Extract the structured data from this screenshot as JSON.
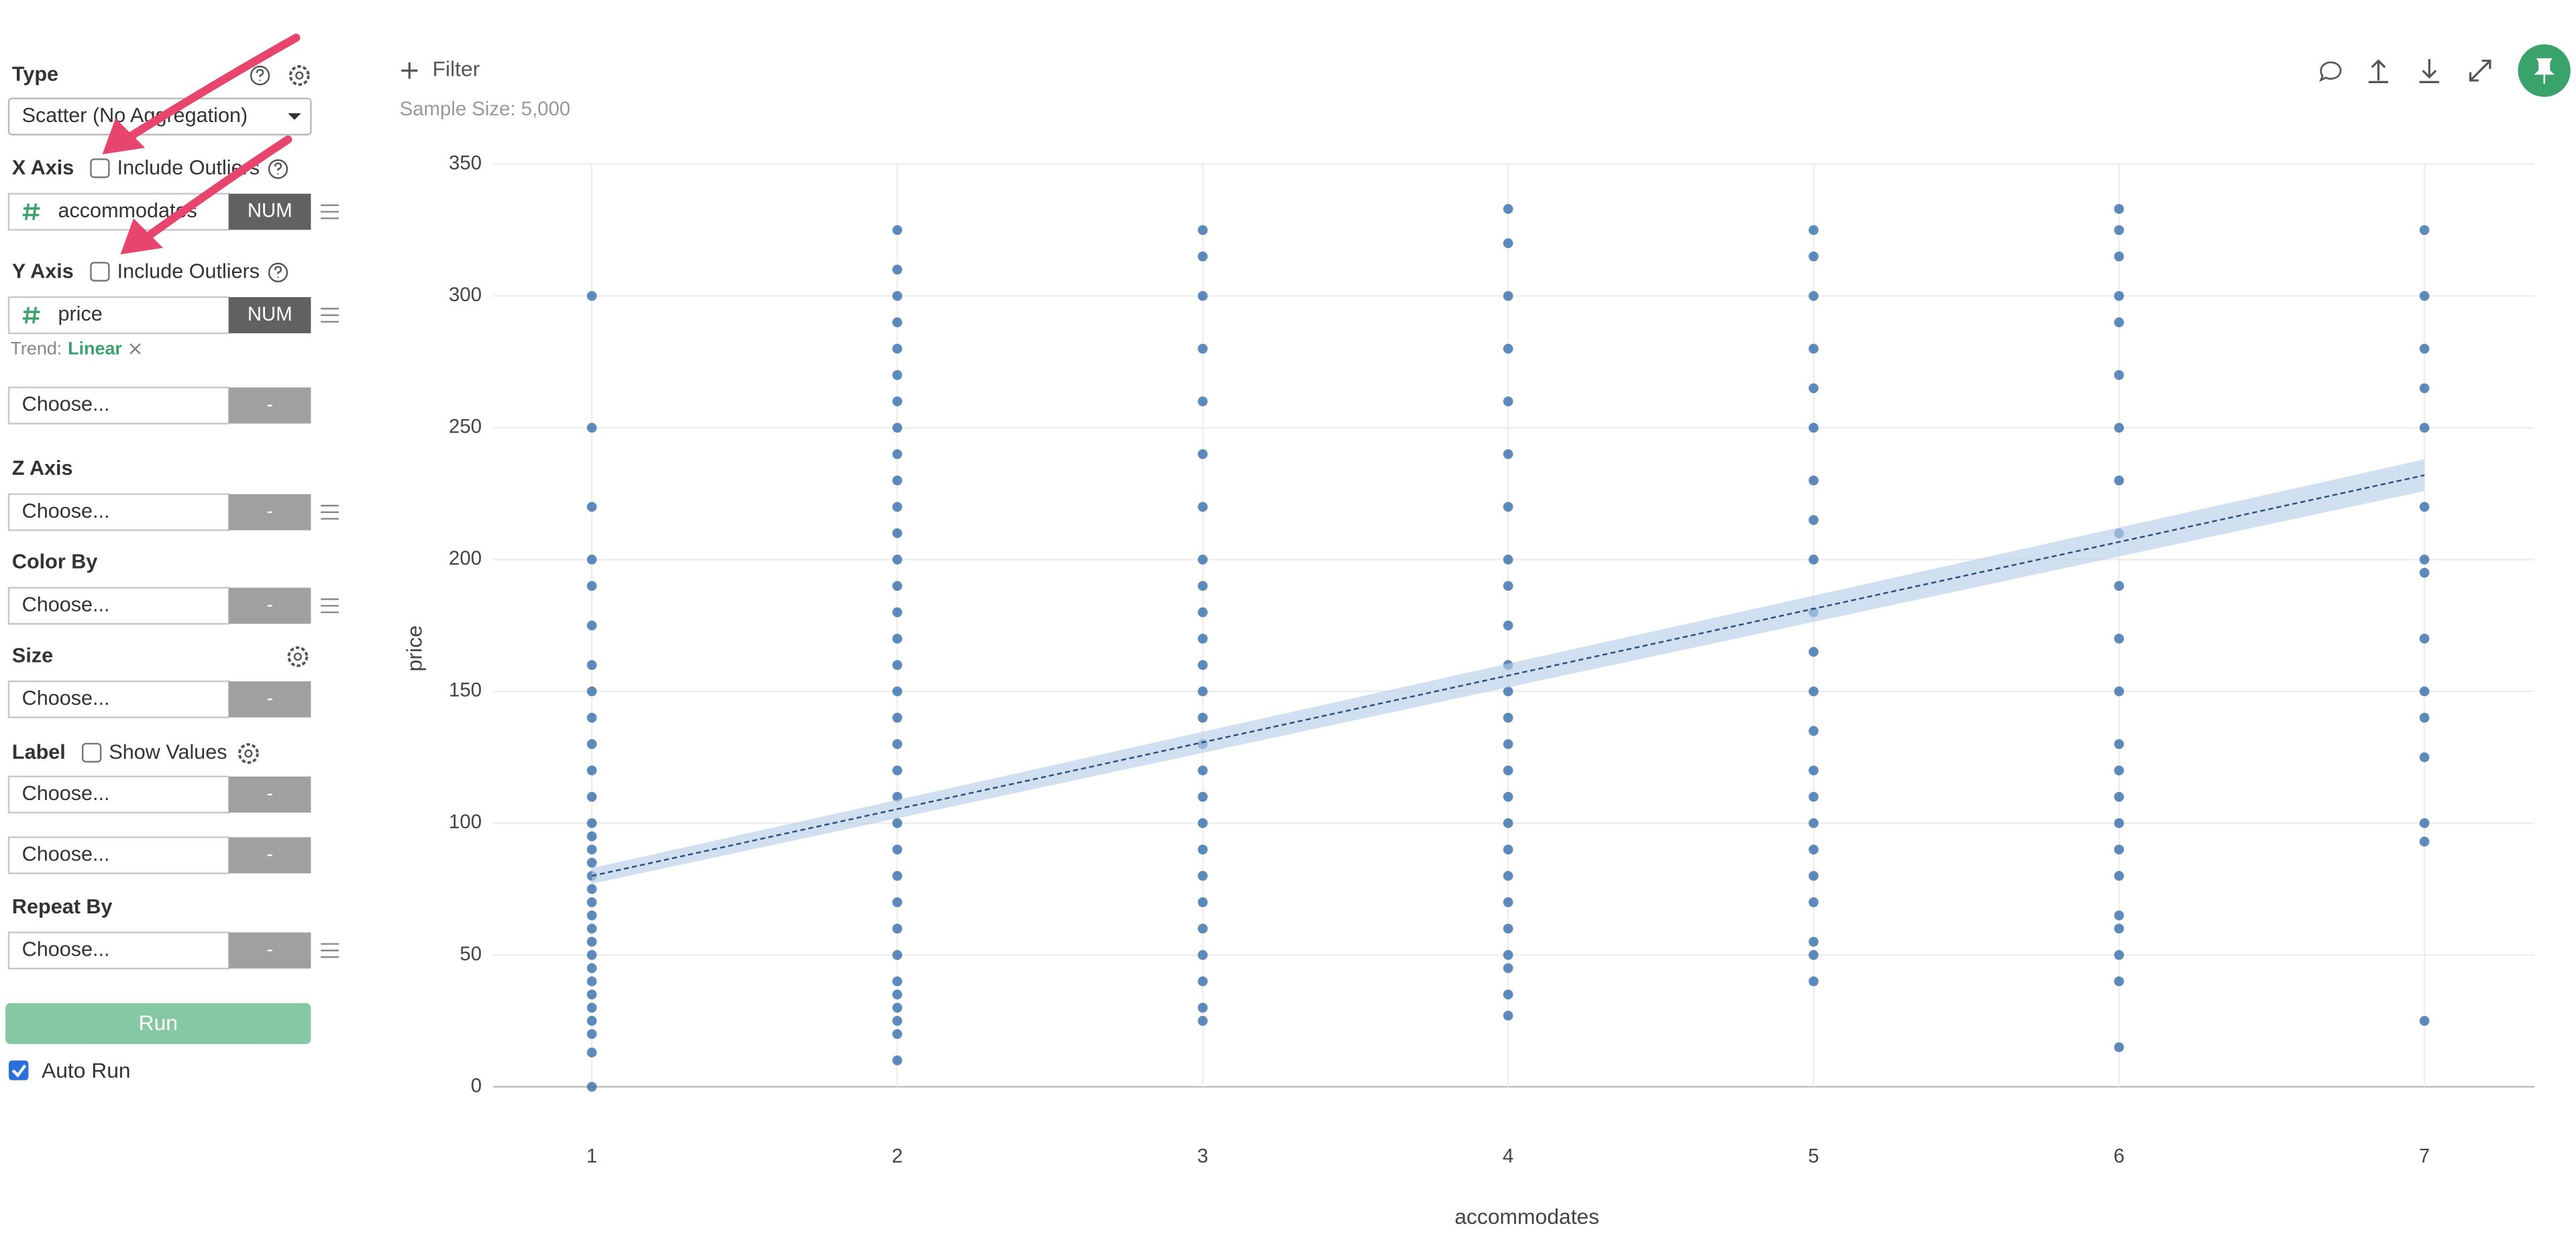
{
  "sidebar": {
    "type": {
      "label": "Type",
      "value": "Scatter (No Aggregation)"
    },
    "x_axis": {
      "label": "X Axis",
      "option": "Include Outliers",
      "column": "accommodates",
      "column_type": "NUM"
    },
    "y_axis": {
      "label": "Y Axis",
      "option": "Include Outliers",
      "column": "price",
      "column_type": "NUM",
      "trend_label": "Trend:",
      "trend_value": "Linear"
    },
    "y_extra": {
      "placeholder": "Choose...",
      "badge": "-"
    },
    "z_axis": {
      "label": "Z Axis",
      "placeholder": "Choose...",
      "badge": "-"
    },
    "color_by": {
      "label": "Color By",
      "placeholder": "Choose...",
      "badge": "-"
    },
    "size": {
      "label": "Size",
      "placeholder": "Choose...",
      "badge": "-"
    },
    "label": {
      "label": "Label",
      "option": "Show Values",
      "inputs": [
        {
          "placeholder": "Choose...",
          "badge": "-"
        },
        {
          "placeholder": "Choose...",
          "badge": "-"
        }
      ]
    },
    "repeat_by": {
      "label": "Repeat By",
      "placeholder": "Choose...",
      "badge": "-"
    },
    "run": "Run",
    "auto_run": "Auto Run"
  },
  "toolbar": {
    "filter": "Filter",
    "sample_size": "Sample Size: 5,000"
  },
  "chart_data": {
    "type": "scatter",
    "x_label": "accommodates",
    "y_label": "price",
    "color": "#2f6aa8",
    "grid": true,
    "xlim": [
      0.677,
      7.36
    ],
    "ylim": [
      0,
      350
    ],
    "xticks": [
      1,
      2,
      3,
      4,
      5,
      6,
      7
    ],
    "yticks": [
      0,
      50,
      100,
      150,
      200,
      250,
      300,
      350
    ],
    "x": [
      1,
      1,
      1,
      1,
      1,
      1,
      1,
      1,
      1,
      1,
      1,
      1,
      1,
      1,
      1,
      1,
      1,
      1,
      1,
      1,
      1,
      1,
      1,
      1,
      1,
      1,
      1,
      1,
      1,
      1,
      1,
      2,
      2,
      2,
      2,
      2,
      2,
      2,
      2,
      2,
      2,
      2,
      2,
      2,
      2,
      2,
      2,
      2,
      2,
      2,
      2,
      2,
      2,
      2,
      2,
      2,
      2,
      2,
      2,
      2,
      2,
      2,
      2,
      2,
      2,
      3,
      3,
      3,
      3,
      3,
      3,
      3,
      3,
      3,
      3,
      3,
      3,
      3,
      3,
      3,
      3,
      3,
      3,
      3,
      3,
      3,
      3,
      3,
      3,
      3,
      3,
      4,
      4,
      4,
      4,
      4,
      4,
      4,
      4,
      4,
      4,
      4,
      4,
      4,
      4,
      4,
      4,
      4,
      4,
      4,
      4,
      4,
      4,
      4,
      4,
      4,
      5,
      5,
      5,
      5,
      5,
      5,
      5,
      5,
      5,
      5,
      5,
      5,
      5,
      5,
      5,
      5,
      5,
      5,
      5,
      5,
      5,
      5,
      6,
      6,
      6,
      6,
      6,
      6,
      6,
      6,
      6,
      6,
      6,
      6,
      6,
      6,
      6,
      6,
      6,
      6,
      6,
      6,
      6,
      6,
      6,
      7,
      7,
      7,
      7,
      7,
      7,
      7,
      7,
      7,
      7,
      7,
      7,
      7,
      7,
      7
    ],
    "values": [
      0,
      13,
      20,
      25,
      30,
      35,
      40,
      45,
      50,
      55,
      60,
      65,
      70,
      75,
      80,
      85,
      90,
      95,
      100,
      110,
      120,
      130,
      140,
      150,
      160,
      175,
      190,
      200,
      220,
      250,
      300,
      10,
      20,
      25,
      30,
      35,
      40,
      50,
      60,
      70,
      80,
      90,
      100,
      110,
      120,
      130,
      140,
      150,
      160,
      170,
      180,
      190,
      200,
      210,
      220,
      230,
      240,
      250,
      260,
      270,
      280,
      290,
      300,
      310,
      325,
      25,
      30,
      40,
      50,
      60,
      70,
      80,
      90,
      100,
      110,
      120,
      130,
      140,
      150,
      160,
      170,
      180,
      190,
      200,
      220,
      240,
      260,
      280,
      300,
      315,
      325,
      27,
      35,
      45,
      50,
      60,
      70,
      80,
      90,
      100,
      110,
      120,
      130,
      140,
      150,
      160,
      175,
      190,
      200,
      220,
      240,
      260,
      280,
      300,
      320,
      333,
      40,
      50,
      55,
      70,
      80,
      90,
      100,
      110,
      120,
      135,
      150,
      165,
      180,
      200,
      215,
      230,
      250,
      265,
      280,
      300,
      315,
      325,
      15,
      40,
      50,
      60,
      65,
      80,
      90,
      100,
      110,
      120,
      130,
      150,
      170,
      190,
      210,
      230,
      250,
      270,
      290,
      300,
      315,
      325,
      333,
      25,
      93,
      100,
      125,
      140,
      150,
      170,
      195,
      200,
      220,
      250,
      265,
      280,
      300,
      325
    ],
    "trend": {
      "x": [
        1,
        7
      ],
      "values": [
        80,
        232
      ],
      "lower": [
        77,
        226
      ],
      "upper": [
        83,
        238
      ]
    }
  }
}
